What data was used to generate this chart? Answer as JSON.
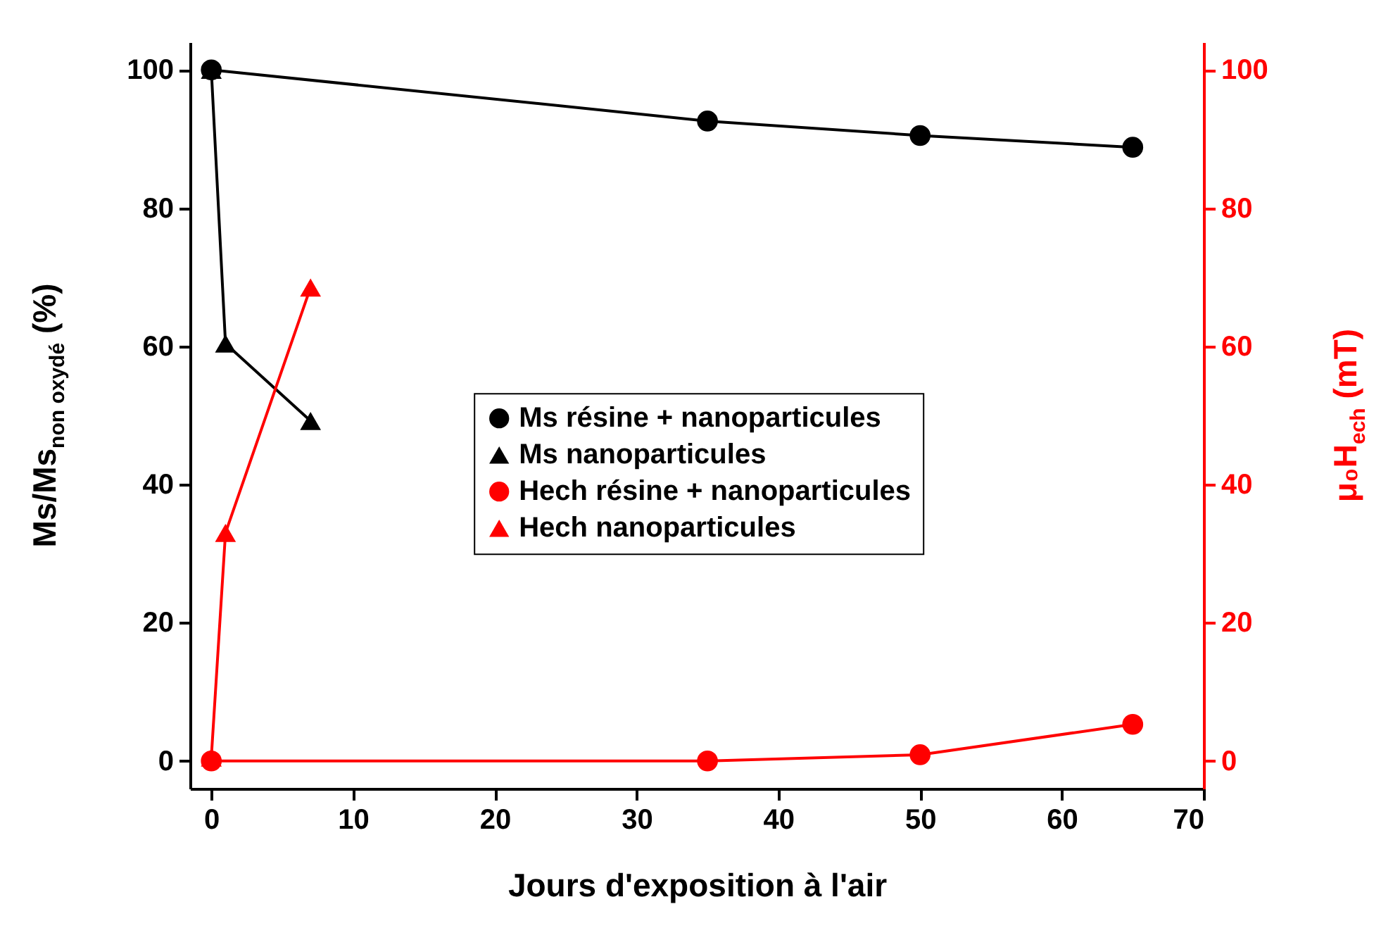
{
  "chart_data": {
    "type": "line",
    "xlabel": "Jours d'exposition à l'air",
    "ylabel": "Ms/Ms$_{non oxydé}$ (%)",
    "y2label": "μ₀H$_{ech}$ (mT)",
    "xlim": [
      -1.5,
      70
    ],
    "xticks": [
      0,
      10,
      20,
      30,
      40,
      50,
      60,
      70
    ],
    "ylim": [
      -4,
      104
    ],
    "yticks": [
      0,
      20,
      40,
      60,
      80,
      100
    ],
    "y2lim": [
      -4,
      104
    ],
    "y2ticks": [
      0,
      20,
      40,
      60,
      80,
      100
    ],
    "legend": "right",
    "grid": false,
    "line_style": "solid",
    "series": [
      {
        "name": "Ms résine + nanoparticules",
        "color": "#000000",
        "marker": "circle",
        "x": [
          0,
          35,
          50,
          65
        ],
        "values": [
          100,
          92.6,
          90.5,
          88.8
        ]
      },
      {
        "name": "Ms nanoparticules",
        "color": "#000000",
        "marker": "triangle",
        "x": [
          0,
          1,
          7
        ],
        "values": [
          100,
          60.4,
          49.2
        ]
      },
      {
        "name": "Hech résine + nanoparticules",
        "color": "#ff0000",
        "marker": "circle",
        "axis": "y2",
        "x": [
          0,
          35,
          50,
          65
        ],
        "values": [
          0,
          0,
          0.9,
          5.3
        ]
      },
      {
        "name": "Hech nanoparticules",
        "color": "#ff0000",
        "marker": "triangle",
        "axis": "y2",
        "x": [
          0,
          1,
          7
        ],
        "values": [
          0.5,
          33,
          68.5
        ]
      }
    ]
  }
}
